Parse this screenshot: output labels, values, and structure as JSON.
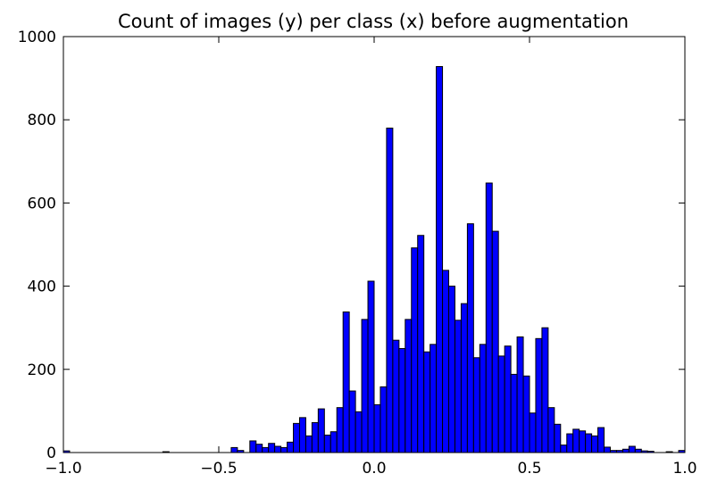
{
  "chart_data": {
    "type": "bar",
    "title": "Count of images (y) per class (x) before augmentation",
    "xlabel": "",
    "ylabel": "",
    "xlim": [
      -1.0,
      1.0
    ],
    "ylim": [
      0,
      1000
    ],
    "grid": false,
    "bar_color": "#0000ff",
    "edge_color": "#000000",
    "x_ticks": [
      -1.0,
      -0.5,
      0.0,
      0.5,
      1.0
    ],
    "x_tick_labels": [
      "−1.0",
      "−0.5",
      "0.0",
      "0.5",
      "1.0"
    ],
    "y_ticks": [
      0,
      200,
      400,
      600,
      800,
      1000
    ],
    "y_tick_labels": [
      "0",
      "200",
      "400",
      "600",
      "800",
      "1000"
    ],
    "bins": {
      "start": -1.0,
      "width": 0.02,
      "values": [
        4,
        0,
        0,
        0,
        0,
        0,
        0,
        0,
        0,
        0,
        0,
        0,
        0,
        0,
        0,
        0,
        2,
        0,
        0,
        0,
        0,
        0,
        0,
        0,
        0,
        0,
        0,
        12,
        5,
        0,
        28,
        20,
        12,
        22,
        15,
        12,
        25,
        70,
        84,
        40,
        72,
        105,
        42,
        50,
        108,
        338,
        148,
        98,
        320,
        412,
        115,
        158,
        780,
        270,
        250,
        320,
        492,
        522,
        242,
        260,
        928,
        438,
        400,
        318,
        358,
        550,
        228,
        260,
        648,
        532,
        232,
        256,
        188,
        278,
        184,
        95,
        274,
        300,
        108,
        68,
        18,
        45,
        56,
        52,
        45,
        40,
        60,
        13,
        5,
        5,
        8,
        15,
        8,
        4,
        3,
        0,
        0,
        2,
        0,
        5
      ]
    }
  }
}
